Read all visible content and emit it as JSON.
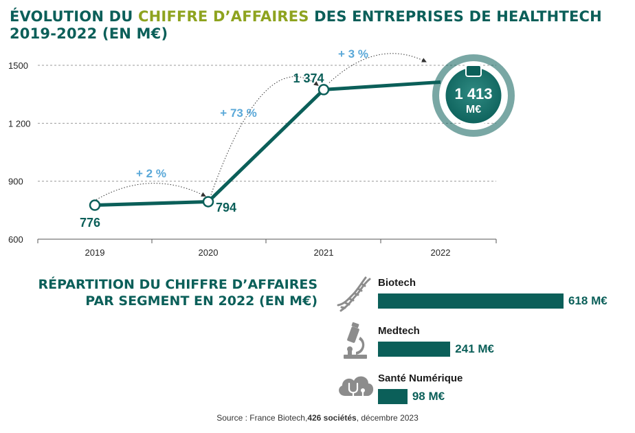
{
  "title": {
    "part1": "ÉVOLUTION DU ",
    "highlight": "CHIFFRE D’AFFAIRES",
    "part2": " DES ENTREPRISES DE HEALTHTECH 2019-2022 (EN M€)"
  },
  "chart_data": [
    {
      "type": "line",
      "x": [
        "2019",
        "2020",
        "2021",
        "2022"
      ],
      "values": [
        776,
        794,
        1374,
        1413
      ],
      "value_labels": [
        "776",
        "794",
        "1 374",
        "1 413"
      ],
      "final_badge_unit": "M€",
      "growth_labels": [
        "+ 2 %",
        "+ 73 %",
        "+ 3 %"
      ],
      "y_ticks": [
        "600",
        "900",
        "1 200",
        "1500"
      ],
      "ylim": [
        600,
        1500
      ],
      "grid": "dashed horizontal"
    },
    {
      "type": "bar",
      "orientation": "horizontal",
      "categories": [
        "Biotech",
        "Medtech",
        "Santé Numérique"
      ],
      "values": [
        618,
        241,
        98
      ],
      "value_labels": [
        "618 M€",
        "241 M€",
        "98 M€"
      ],
      "icons": [
        "dna-icon",
        "microscope-icon",
        "cloud-stethoscope-icon"
      ],
      "colors": {
        "bar": "#0b5f59"
      }
    }
  ],
  "segment_title": {
    "line1": "RÉPARTITION DU CHIFFRE D’AFFAIRES",
    "line2": "PAR SEGMENT EN 2022 (EN M€)"
  },
  "source": {
    "prefix": "Source : France Biotech,",
    "bold": "426  sociétés",
    "suffix": ", décembre 2023"
  },
  "colors": {
    "teal": "#0b5f59",
    "green": "#8ea31f",
    "blue": "#5aa8d8",
    "grey": "#8c8c8c"
  }
}
